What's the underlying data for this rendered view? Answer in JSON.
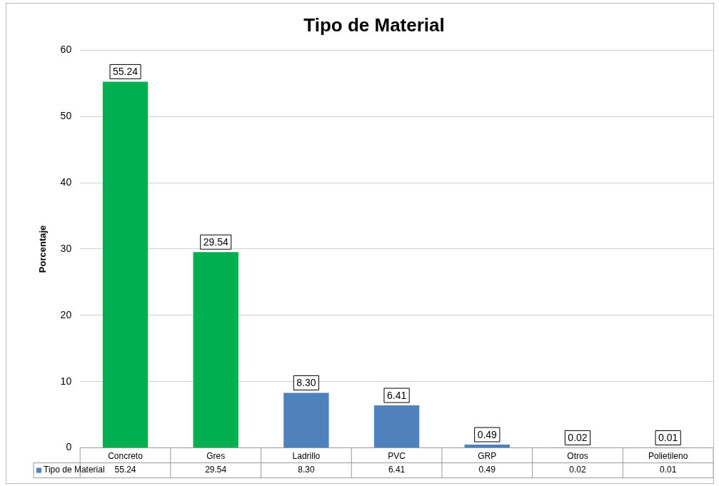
{
  "chart_data": {
    "type": "bar",
    "title": "Tipo de Material",
    "ylabel": "Porcentaje",
    "categories": [
      "Concreto",
      "Gres",
      "Ladrillo",
      "PVC",
      "GRP",
      "Otros",
      "Polietileno"
    ],
    "series": [
      {
        "name": "Tipo de Material",
        "color": "#4f81bd",
        "colors": [
          "#00b050",
          "#00b050",
          "#4f81bd",
          "#4f81bd",
          "#4f81bd",
          "#4f81bd",
          "#4f81bd"
        ],
        "values": [
          55.24,
          29.54,
          8.3,
          6.41,
          0.49,
          0.02,
          0.01
        ],
        "value_labels": [
          "55.24",
          "29.54",
          "8.30",
          "6.41",
          "0.49",
          "0.02",
          "0.01"
        ]
      }
    ],
    "ylim": [
      0,
      60
    ],
    "yticks": [
      0,
      10,
      20,
      30,
      40,
      50,
      60
    ],
    "grid": "y"
  }
}
